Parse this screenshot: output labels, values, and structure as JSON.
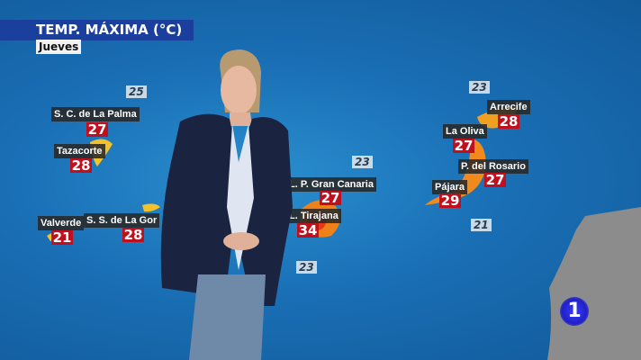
{
  "header": {
    "title": "TEMP. MÁXIMA (°C)",
    "day": "Jueves"
  },
  "sea_temps": [
    "25",
    "23",
    "23",
    "23",
    "21"
  ],
  "cities": [
    {
      "name": "S. C. de La Palma",
      "temp": "27"
    },
    {
      "name": "Tazacorte",
      "temp": "28"
    },
    {
      "name": "S. S. de La Gor",
      "temp": "28"
    },
    {
      "name": "Valverde",
      "temp": "21"
    },
    {
      "name": "L. P. Gran Canaria",
      "temp": "27"
    },
    {
      "name": "L. Tirajana",
      "temp": "34"
    },
    {
      "name": "Arrecife",
      "temp": "28"
    },
    {
      "name": "La Oliva",
      "temp": "27"
    },
    {
      "name": "P. del Rosario",
      "temp": "27"
    },
    {
      "name": "Pájara",
      "temp": "29"
    }
  ],
  "logo": "1",
  "colors": {
    "temp_badge": "#c0101e",
    "title_bar": "#1b3f9c",
    "land_hot": "#f08a1c",
    "land_mild": "#f5c12a"
  }
}
